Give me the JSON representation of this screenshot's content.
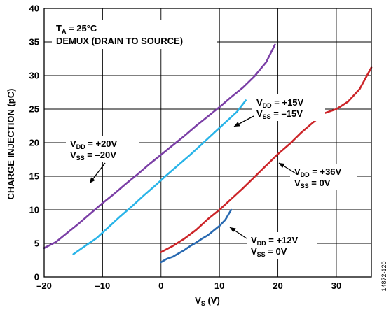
{
  "chart_data": {
    "type": "line",
    "title": "",
    "xlabel": "V",
    "xlabel_sub": "S",
    "xlabel_unit": " (V)",
    "ylabel": "CHARGE INJECTION (pC)",
    "xlim": [
      -20,
      36
    ],
    "ylim": [
      0,
      40
    ],
    "xticks": [
      -20,
      -10,
      0,
      10,
      20,
      30
    ],
    "xtick_labels": [
      "–20",
      "–10",
      "0",
      "10",
      "20",
      "30"
    ],
    "yticks": [
      0,
      5,
      10,
      15,
      20,
      25,
      30,
      35,
      40
    ],
    "grid": true,
    "conditions": {
      "ta_main": "T",
      "ta_sub": "A",
      "ta_value": " = 25°C",
      "mode": "DEMUX (DRAIN TO SOURCE)"
    },
    "series": [
      {
        "vdd_label": "+20V",
        "vss_label": "–20V",
        "color": "#7b3fa6",
        "x": [
          -20,
          -18,
          -16,
          -14,
          -12,
          -10,
          -8,
          -6,
          -4,
          -2,
          0,
          2,
          4,
          6,
          8,
          10,
          12,
          14,
          16,
          18,
          19.5
        ],
        "y": [
          4.3,
          5.2,
          6.6,
          8.0,
          9.5,
          11.0,
          12.4,
          13.9,
          15.3,
          16.8,
          18.2,
          19.6,
          21.0,
          22.5,
          23.9,
          25.3,
          26.8,
          28.2,
          29.9,
          32.0,
          34.6
        ]
      },
      {
        "vdd_label": "+15V",
        "vss_label": "–15V",
        "color": "#29b4e8",
        "x": [
          -15,
          -13,
          -11,
          -9,
          -7,
          -5,
          -3,
          -1,
          1,
          3,
          5,
          7,
          9,
          11,
          13,
          14.5
        ],
        "y": [
          3.4,
          4.6,
          5.8,
          7.4,
          9.0,
          10.5,
          12.1,
          13.6,
          15.2,
          16.7,
          18.2,
          19.8,
          21.4,
          23.0,
          24.6,
          26.3
        ]
      },
      {
        "vdd_label": "+36V",
        "vss_label": "0V",
        "color": "#cc2529",
        "x": [
          0,
          2,
          4,
          6,
          8,
          10,
          12,
          14,
          16,
          18,
          20,
          22,
          24,
          26,
          28,
          30,
          32,
          34,
          36
        ],
        "y": [
          3.7,
          4.6,
          5.7,
          7.0,
          8.6,
          10.0,
          11.6,
          13.2,
          14.9,
          16.6,
          18.3,
          19.8,
          21.5,
          23.0,
          24.4,
          25.0,
          26.1,
          28.0,
          31.2
        ]
      },
      {
        "vdd_label": "+12V",
        "vss_label": "0V",
        "color": "#2869b1",
        "x": [
          0,
          1,
          2,
          3,
          4,
          5,
          6,
          7,
          8,
          9,
          10,
          11,
          12
        ],
        "y": [
          2.2,
          2.7,
          3.0,
          3.5,
          4.0,
          4.6,
          5.1,
          5.7,
          6.2,
          6.9,
          7.6,
          8.5,
          10.0
        ]
      }
    ],
    "label_vdd_prefix": "V",
    "label_vdd_sub": "DD",
    "label_vss_prefix": "V",
    "label_vss_sub": "SS",
    "label_eq": " = ",
    "figure_id": "14872-120"
  }
}
